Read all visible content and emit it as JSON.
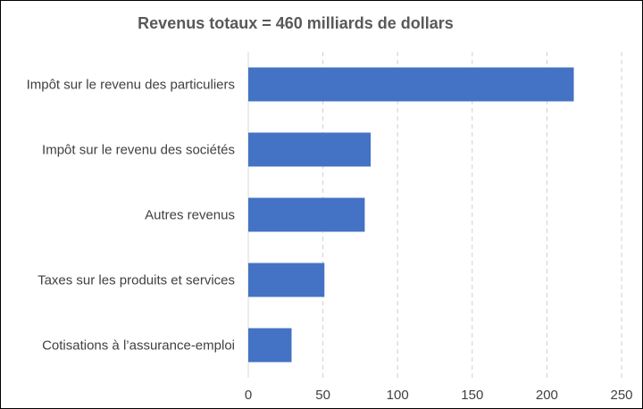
{
  "chart_data": {
    "type": "bar",
    "orientation": "horizontal",
    "title": "Revenus totaux = 460 milliards de dollars",
    "categories": [
      "Impôt sur le revenu des particuliers",
      "Impôt sur le revenu des sociétés",
      "Autres revenus",
      "Taxes sur les produits et services",
      "Cotisations à l’assurance-emploi"
    ],
    "values": [
      218,
      82,
      78,
      51,
      29
    ],
    "xlim": [
      0,
      250
    ],
    "xticks": [
      "0",
      "50",
      "100",
      "150",
      "200",
      "250"
    ],
    "xtick_values": [
      0,
      50,
      100,
      150,
      200,
      250
    ],
    "grid": "vertical-dashed",
    "bar_color": "#4472C4",
    "xlabel": "",
    "ylabel": ""
  }
}
